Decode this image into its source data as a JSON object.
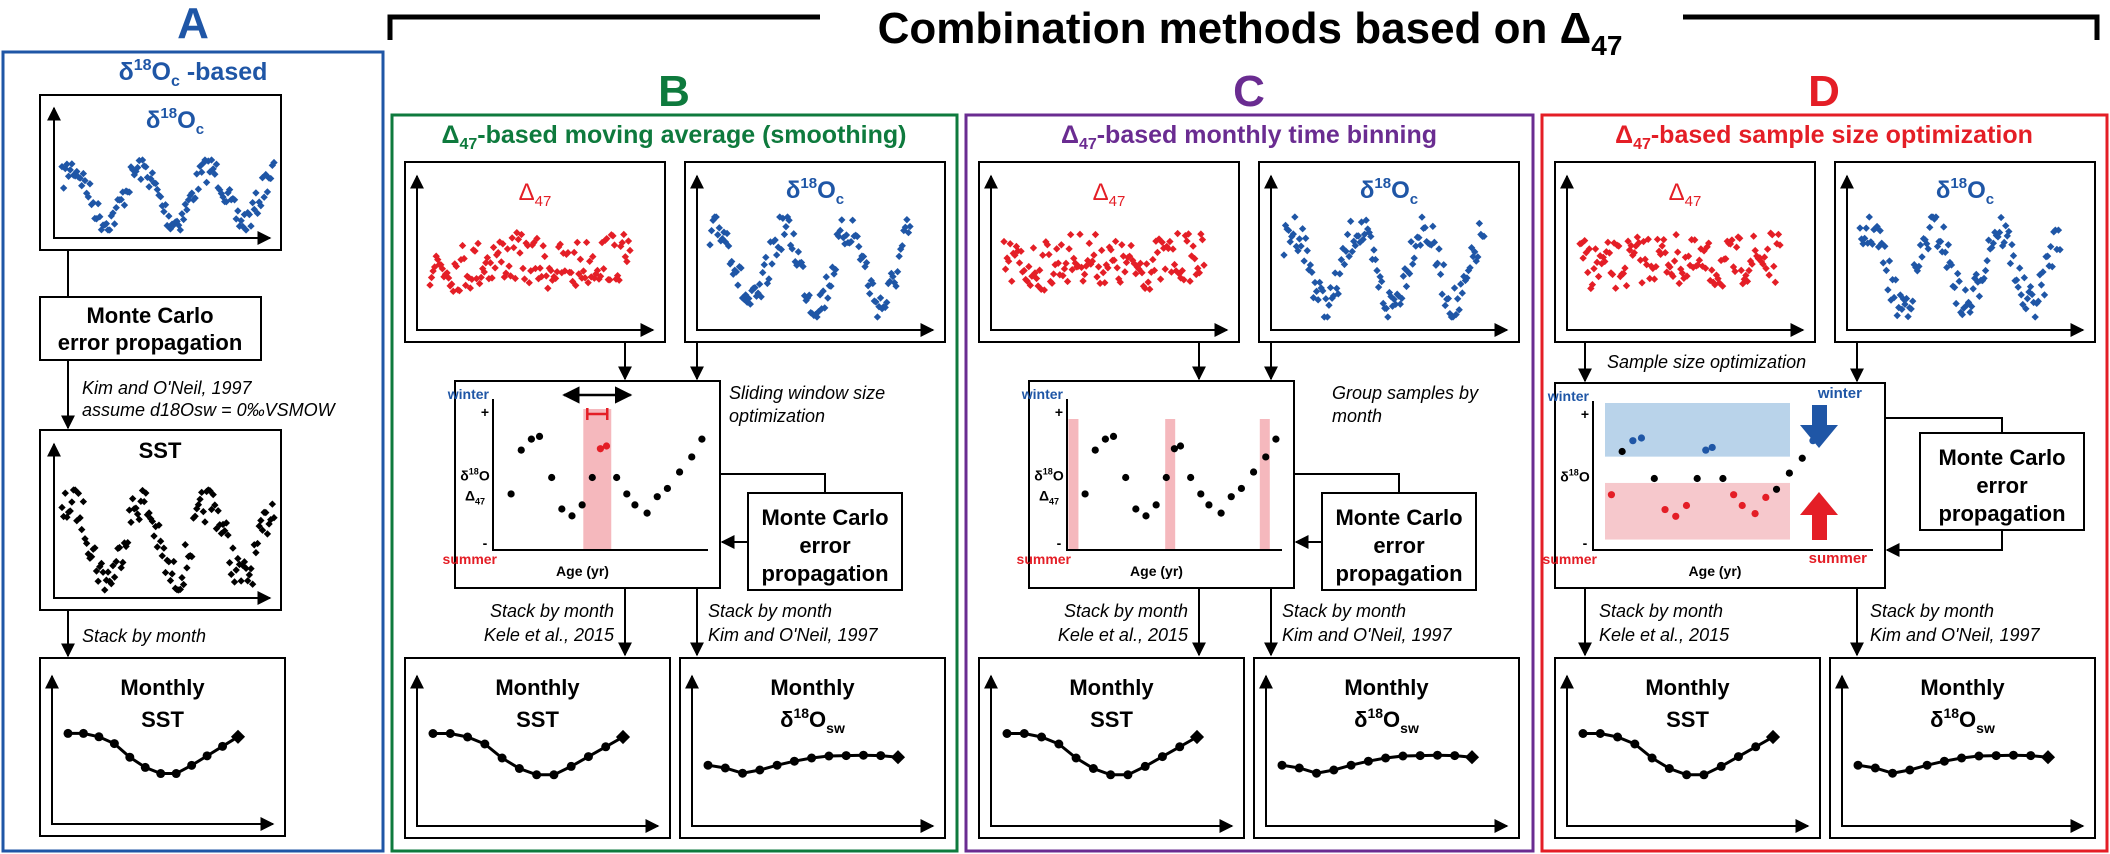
{
  "title": {
    "prefix": "Combination methods based on ",
    "delta": "Δ",
    "sub": "47"
  },
  "colors": {
    "blue": "#1f56a6",
    "green": "#0e7a3d",
    "purple": "#6a2c91",
    "red": "#e41e26",
    "pink": "#f5b8bd",
    "lightblue": "#b9d3ea",
    "black": "#000000"
  },
  "labels": {
    "mc_line1": "Monte Carlo",
    "mc_line2": "error",
    "mc_line3": "propagation",
    "mc_single_line2": "error propagation",
    "stack_by_month": "Stack by month",
    "kele": "Kele et al., 2015",
    "kim": "Kim and O'Neil, 1997",
    "monthly": "Monthly",
    "sst": "SST",
    "winter": "winter",
    "summer": "summer",
    "age": "Age (yr)",
    "plus": "+",
    "minus": "-"
  },
  "panel_a": {
    "letter": "A",
    "heading_d": "δ",
    "heading_sup": "18",
    "heading_o": "O",
    "heading_sub": "c",
    "heading_rest": " -based",
    "note_line1": "Kim and O'Neil, 1997",
    "note_line2": "assume d18Osw = 0‰VSMOW",
    "sst_title": "SST"
  },
  "panel_b": {
    "letter": "B",
    "heading_rest": "-based moving average (smoothing)",
    "annotation_line1": "Sliding window size",
    "annotation_line2": "optimization"
  },
  "panel_c": {
    "letter": "C",
    "heading_rest": "-based monthly time binning",
    "annotation_line1": "Group samples by",
    "annotation_line2": "month"
  },
  "panel_d": {
    "letter": "D",
    "heading_rest": "-based sample size optimization",
    "annotation": "Sample size optimization"
  }
}
